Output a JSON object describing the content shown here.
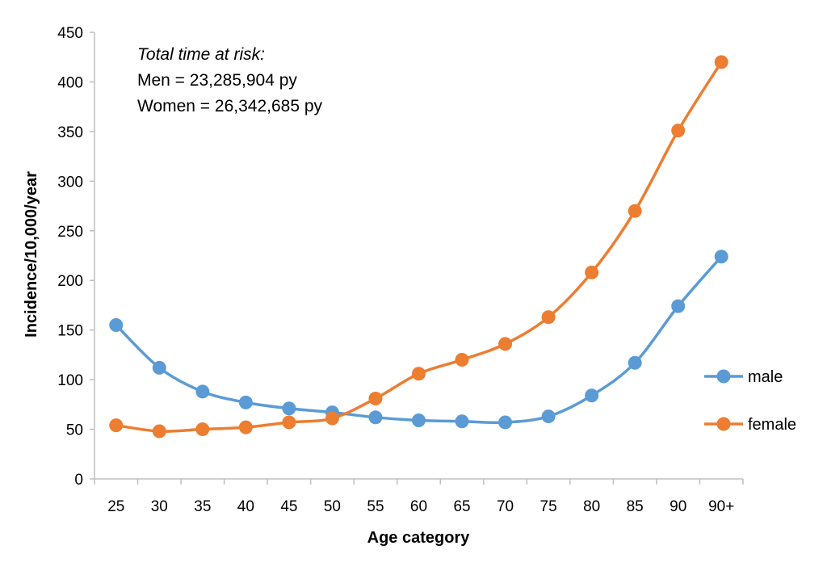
{
  "chart_data": {
    "type": "line",
    "title": "",
    "xlabel": "Age category",
    "ylabel": "Incidence/10,000/year",
    "categories": [
      "25",
      "30",
      "35",
      "40",
      "45",
      "50",
      "55",
      "60",
      "65",
      "70",
      "75",
      "80",
      "85",
      "90",
      "90+"
    ],
    "ylim": [
      0,
      450
    ],
    "yticks": [
      0,
      50,
      100,
      150,
      200,
      250,
      300,
      350,
      400,
      450
    ],
    "grid": false,
    "legend_position": "right",
    "series": [
      {
        "name": "male",
        "color": "#5b9bd5",
        "values": [
          155,
          112,
          88,
          77,
          71,
          67,
          62,
          59,
          58,
          57,
          63,
          84,
          117,
          174,
          224
        ]
      },
      {
        "name": "female",
        "color": "#ed7d31",
        "values": [
          54,
          48,
          50,
          52,
          57,
          61,
          81,
          106,
          120,
          136,
          163,
          208,
          270,
          351,
          420
        ]
      }
    ],
    "annotations": [
      "Total time at risk:",
      "Men = 23,285,904 py",
      "Women = 26,342,685 py"
    ]
  }
}
